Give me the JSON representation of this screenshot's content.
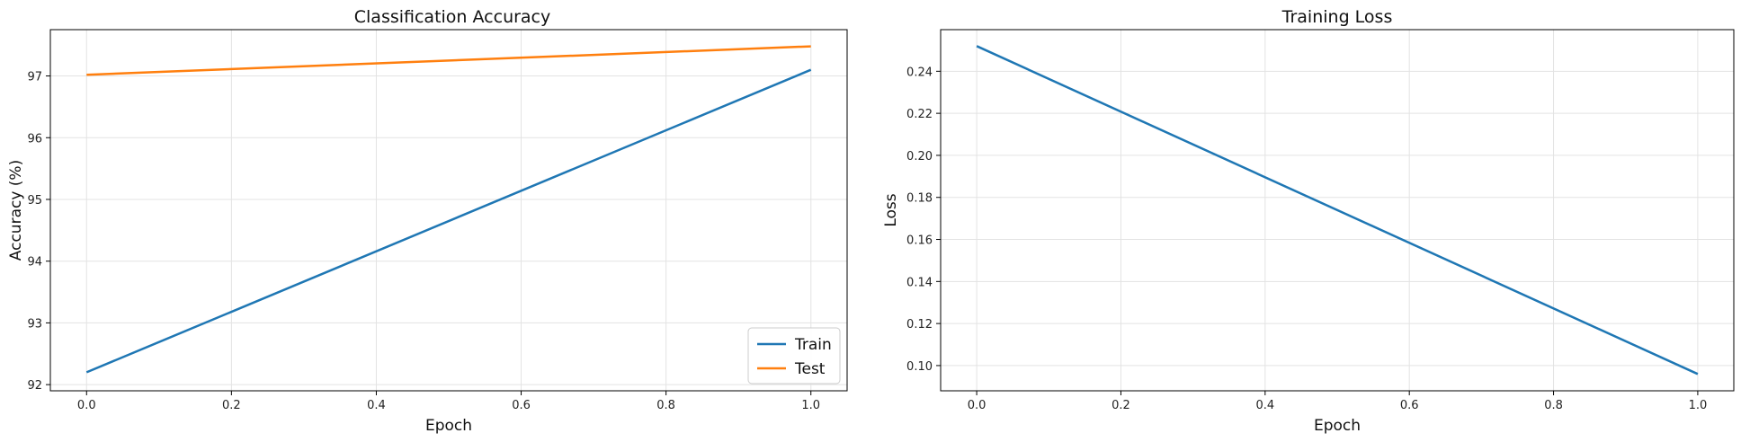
{
  "chart_data": [
    {
      "type": "line",
      "title": "Classification Accuracy",
      "xlabel": "Epoch",
      "ylabel": "Accuracy (%)",
      "xlim": [
        -0.05,
        1.05
      ],
      "ylim": [
        91.9,
        97.75
      ],
      "xticks": [
        0.0,
        0.2,
        0.4,
        0.6,
        0.8,
        1.0
      ],
      "xtick_labels": [
        "0.0",
        "0.2",
        "0.4",
        "0.6",
        "0.8",
        "1.0"
      ],
      "yticks": [
        92,
        93,
        94,
        95,
        96,
        97
      ],
      "ytick_labels": [
        "92",
        "93",
        "94",
        "95",
        "96",
        "97"
      ],
      "grid": true,
      "legend_position": "lower-right",
      "series": [
        {
          "name": "Train",
          "color": "#1f77b4",
          "x": [
            0,
            1
          ],
          "y": [
            92.2,
            97.1
          ]
        },
        {
          "name": "Test",
          "color": "#ff7f0e",
          "x": [
            0,
            1
          ],
          "y": [
            97.02,
            97.48
          ]
        }
      ]
    },
    {
      "type": "line",
      "title": "Training Loss",
      "xlabel": "Epoch",
      "ylabel": "Loss",
      "xlim": [
        -0.05,
        1.05
      ],
      "ylim": [
        0.088,
        0.2598
      ],
      "xticks": [
        0.0,
        0.2,
        0.4,
        0.6,
        0.8,
        1.0
      ],
      "xtick_labels": [
        "0.0",
        "0.2",
        "0.4",
        "0.6",
        "0.8",
        "1.0"
      ],
      "yticks": [
        0.1,
        0.12,
        0.14,
        0.16,
        0.18,
        0.2,
        0.22,
        0.24
      ],
      "ytick_labels": [
        "0.10",
        "0.12",
        "0.14",
        "0.16",
        "0.18",
        "0.20",
        "0.22",
        "0.24"
      ],
      "grid": true,
      "series": [
        {
          "color": "#1f77b4",
          "x": [
            0,
            1
          ],
          "y": [
            0.252,
            0.096
          ]
        }
      ]
    }
  ]
}
